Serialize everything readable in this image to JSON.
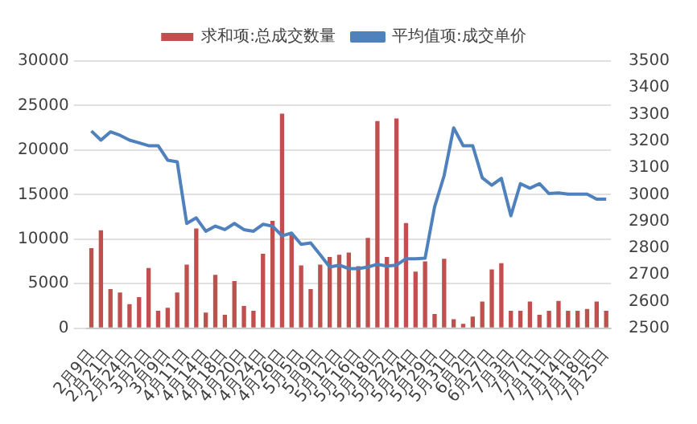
{
  "chart_data": {
    "type": "bar",
    "categories": [
      "2月9日",
      null,
      "2月21日",
      null,
      "2月24日",
      null,
      "3月2日",
      null,
      "3月9日",
      null,
      "4月11日",
      null,
      "4月14日",
      null,
      "4月18日",
      null,
      "4月20日",
      null,
      "4月24日",
      null,
      "4月26日",
      null,
      "5月5日",
      null,
      "5月9日",
      null,
      "5月12日",
      null,
      "5月16日",
      null,
      "5月18日",
      null,
      "5月22日",
      null,
      "5月24日",
      null,
      "5月29日",
      null,
      "5月31日",
      null,
      "6月2日",
      null,
      "6月27日",
      null,
      "7月3日",
      null,
      "7月7日",
      null,
      "7月11日",
      null,
      "7月14日",
      null,
      "7月18日",
      null,
      "7月25日"
    ],
    "series": [
      {
        "name": "求和项:总成交数量",
        "color": "#c0504d",
        "values": [
          9000,
          11000,
          4400,
          4000,
          2700,
          3500,
          6750,
          1950,
          2300,
          4000,
          7150,
          11200,
          1750,
          6000,
          1500,
          5300,
          2500,
          1950,
          8350,
          12050,
          24100,
          10500,
          7050,
          4400,
          7150,
          8000,
          8250,
          8500,
          6950,
          10150,
          23250,
          8000,
          23550,
          11800,
          6350,
          7500,
          1600,
          7800,
          1000,
          500,
          1300,
          3000,
          6600,
          7300,
          1950,
          1950,
          3000,
          1500,
          1950,
          3050,
          1950,
          1950,
          2150,
          3000,
          1950
        ]
      },
      {
        "name": "平均值项:成交单价",
        "type": "line",
        "axis": "y2",
        "color": "#4f81bd",
        "values": [
          3238,
          3204,
          3235,
          3222,
          3204,
          3194,
          3183,
          3183,
          3129,
          3123,
          2892,
          2913,
          2863,
          2882,
          2869,
          2892,
          2869,
          2863,
          2889,
          2882,
          2846,
          2856,
          2814,
          2819,
          2775,
          2729,
          2736,
          2723,
          2723,
          2729,
          2739,
          2733,
          2736,
          2760,
          2760,
          2762,
          2954,
          3071,
          3250,
          3183,
          3183,
          3063,
          3035,
          3061,
          2921,
          3041,
          3024,
          3041,
          3004,
          3006,
          3002,
          3002,
          3002,
          2983,
          2983
        ]
      }
    ],
    "ylim": [
      0,
      30000
    ],
    "yticks": [
      0,
      5000,
      10000,
      15000,
      20000,
      25000,
      30000
    ],
    "y2lim": [
      2500,
      3500
    ],
    "y2ticks": [
      2500,
      2600,
      2700,
      2800,
      2900,
      3000,
      3100,
      3200,
      3300,
      3400,
      3500
    ],
    "grid": "y",
    "legend": "top",
    "marker": "none"
  }
}
